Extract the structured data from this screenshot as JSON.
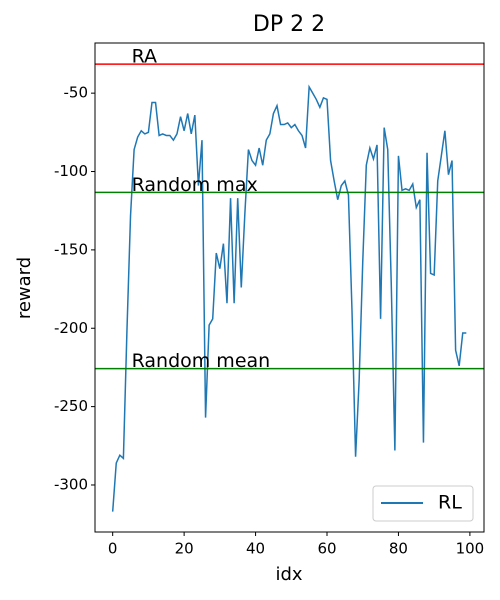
{
  "chart_data": {
    "type": "line",
    "title": "DP 2 2",
    "x_label": "idx",
    "y_label": "reward",
    "xlim": [
      -4.95,
      103.95
    ],
    "xticks": [
      0,
      20,
      40,
      60,
      80,
      100
    ],
    "ylim": [
      -330,
      -18
    ],
    "yticks": [
      -50,
      -100,
      -150,
      -200,
      -250,
      -300
    ],
    "x": [
      0,
      1,
      2,
      3,
      4,
      5,
      6,
      7,
      8,
      9,
      10,
      11,
      12,
      13,
      14,
      15,
      16,
      17,
      18,
      19,
      20,
      21,
      22,
      23,
      24,
      25,
      26,
      27,
      28,
      29,
      30,
      31,
      32,
      33,
      34,
      35,
      36,
      37,
      38,
      39,
      40,
      41,
      42,
      43,
      44,
      45,
      46,
      47,
      48,
      49,
      50,
      51,
      52,
      53,
      54,
      55,
      56,
      57,
      58,
      59,
      60,
      61,
      62,
      63,
      64,
      65,
      66,
      67,
      68,
      69,
      70,
      71,
      72,
      73,
      74,
      75,
      76,
      77,
      78,
      79,
      80,
      81,
      82,
      83,
      84,
      85,
      86,
      87,
      88,
      89,
      90,
      91,
      92,
      93,
      94,
      95,
      96,
      97,
      98,
      99
    ],
    "series": [
      {
        "name": "RL",
        "color": "#1f77b4",
        "values": [
          -317,
          -286,
          -281,
          -283,
          -201,
          -128,
          -86,
          -78,
          -74,
          -76,
          -75,
          -56,
          -56,
          -77,
          -76,
          -77,
          -77,
          -80,
          -76,
          -65,
          -74,
          -63,
          -76,
          -64,
          -109,
          -80,
          -257,
          -198,
          -194,
          -152,
          -162,
          -146,
          -184,
          -117,
          -184,
          -117,
          -174,
          -127,
          -86,
          -93,
          -96,
          -85,
          -96,
          -80,
          -76,
          -63,
          -58,
          -70,
          -70,
          -69,
          -72,
          -70,
          -74,
          -77,
          -85,
          -46,
          -50,
          -54,
          -59,
          -53,
          -54,
          -93,
          -106,
          -118,
          -109,
          -106,
          -115,
          -189,
          -282,
          -233,
          -158,
          -96,
          -85,
          -92,
          -83,
          -194,
          -72,
          -86,
          -173,
          -278,
          -90,
          -112,
          -111,
          -112,
          -108,
          -123,
          -118,
          -273,
          -88,
          -165,
          -166,
          -106,
          -90,
          -74,
          -102,
          -93,
          -214,
          -224,
          -203,
          -203
        ]
      }
    ],
    "hlines": [
      {
        "label": "RA",
        "value": -31.5,
        "color": "#ff0000"
      },
      {
        "label": "Random max",
        "value": -113.3,
        "color": "#008000"
      },
      {
        "label": "Random mean",
        "value": -225.8,
        "color": "#008000"
      }
    ],
    "hline_label_x": 5.3,
    "legend": "lower right"
  }
}
